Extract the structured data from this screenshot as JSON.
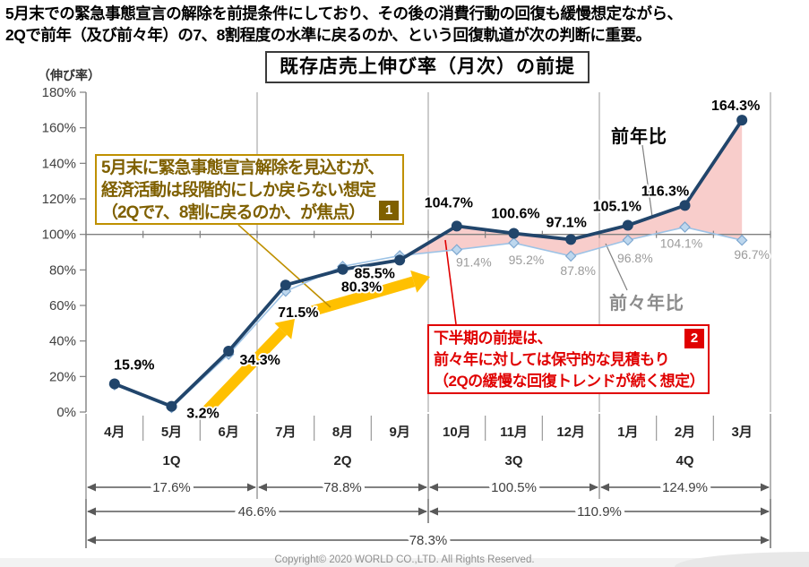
{
  "header": {
    "line1": "5月末での緊急事態宣言の解除を前提条件にしており、その後の消費行動の回復も緩慢想定ながら、",
    "line2": "2Qで前年（及び前々年）の7、8割程度の水準に戻るのか、という回復軌道が次の判断に重要。"
  },
  "chart_data": {
    "type": "line",
    "title": "既存店売上伸び率（月次）の前提",
    "ylabel": "（伸び率）",
    "ylim": [
      0,
      180
    ],
    "y_tick_step": 20,
    "y_tick_suffix": "%",
    "grid": "100%-axis-only",
    "categories": [
      "4月",
      "5月",
      "6月",
      "7月",
      "8月",
      "9月",
      "10月",
      "11月",
      "12月",
      "1月",
      "2月",
      "3月"
    ],
    "quarter_labels": [
      "1Q",
      "2Q",
      "3Q",
      "4Q"
    ],
    "series": [
      {
        "name": "前年比",
        "color": "#21456B",
        "values": [
          15.9,
          3.2,
          34.3,
          71.5,
          80.3,
          85.5,
          104.7,
          100.6,
          97.1,
          105.1,
          116.3,
          164.3
        ],
        "labels": [
          "15.9%",
          "3.2%",
          "34.3%",
          "71.5%",
          "80.3%",
          "85.5%",
          "104.7%",
          "100.6%",
          "97.1%",
          "105.1%",
          "116.3%",
          "164.3%"
        ]
      },
      {
        "name": "前々年比",
        "color": "#9DC3E6",
        "values": [
          15.3,
          2.5,
          32.5,
          68.0,
          82.0,
          88.0,
          91.4,
          95.2,
          87.8,
          96.8,
          104.1,
          96.7
        ],
        "labels": [
          "",
          "",
          "",
          "",
          "",
          "",
          "91.4%",
          "95.2%",
          "87.8%",
          "96.8%",
          "104.1%",
          "96.7%"
        ]
      }
    ],
    "fill_between": {
      "color": "#F5BCBA",
      "note": "前年比が前々年比を上回る領域"
    },
    "quarter_totals": [
      "17.6%",
      "78.8%",
      "100.5%",
      "124.9%"
    ],
    "half_totals": [
      "46.6%",
      "110.9%"
    ],
    "year_total": "78.3%"
  },
  "annotations": {
    "note1": {
      "badge": "1",
      "lines": [
        "5月末に緊急事態宣言解除を見込むが、",
        "経済活動は段階的にしか戻らない想定",
        "（2Qで7、8割に戻るのか、が焦点）"
      ]
    },
    "note2": {
      "badge": "2",
      "lines": [
        "下半期の前提は、",
        "前々年に対しては保守的な見積もり",
        "（2Qの緩慢な回復トレンドが続く想定）"
      ]
    },
    "series_label_yoy": "前年比",
    "series_label_yo2y": "前々年比"
  },
  "footer": {
    "copyright": "Copyright© 2020 WORLD CO.,LTD. All Rights Reserved."
  },
  "colors": {
    "prev_year_line": "#21456B",
    "two_years_ago_line": "#9DC3E6",
    "marker_fill_light": "#BDD7EE",
    "marker_stroke_light": "#7FA8D0",
    "area_fill": "#F5BCBA",
    "highlight_arrow": "#FFC000",
    "note1_leader": "#BF9000",
    "note2_leader": "#E00000",
    "axis_gray": "#7F7F7F",
    "grid_gray": "#ABABAB",
    "bracket_gray": "#595959",
    "label_gray": "#9B9B9B"
  }
}
